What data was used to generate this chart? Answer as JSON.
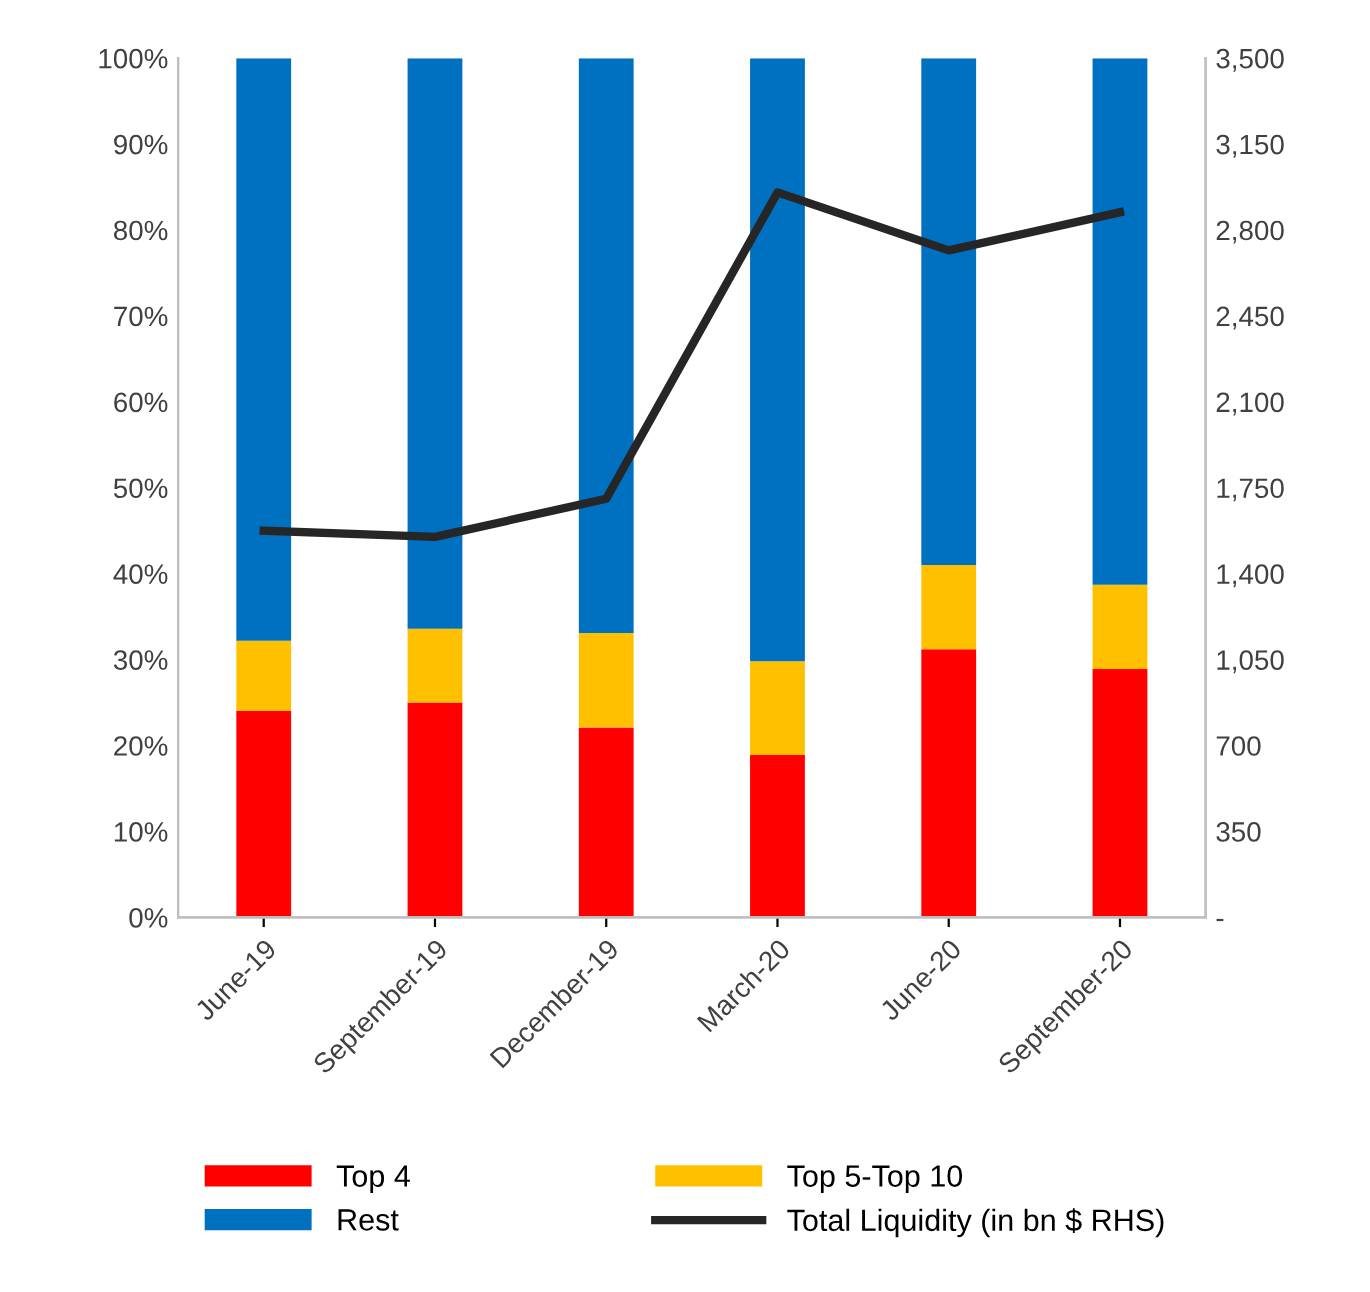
{
  "chart_data": {
    "type": "bar",
    "stacked": true,
    "categories": [
      "June-19",
      "September-19",
      "December-19",
      "March-20",
      "June-20",
      "September-20"
    ],
    "series": [
      {
        "name": "Top 4",
        "color": "#ff0000",
        "values": [
          24.0,
          25.0,
          22.1,
          18.9,
          31.2,
          28.9
        ]
      },
      {
        "name": "Top 5-Top 10",
        "color": "#ffc000",
        "values": [
          8.2,
          8.6,
          11.0,
          10.9,
          9.8,
          9.8
        ]
      },
      {
        "name": "Rest",
        "color": "#0070c0",
        "values": [
          67.8,
          66.4,
          66.9,
          70.2,
          59.0,
          61.3
        ]
      },
      {
        "name": "Total Liquidity (in bn $ RHS)",
        "type": "line",
        "axis": "y2",
        "color": "#262626",
        "values": [
          1575,
          1550,
          1705,
          2953,
          2717,
          2872
        ]
      }
    ],
    "ylim": [
      0,
      100
    ],
    "yticks": [
      {
        "value": 0,
        "label": "0%"
      },
      {
        "value": 10,
        "label": "10%"
      },
      {
        "value": 20,
        "label": "20%"
      },
      {
        "value": 30,
        "label": "30%"
      },
      {
        "value": 40,
        "label": "40%"
      },
      {
        "value": 50,
        "label": "50%"
      },
      {
        "value": 60,
        "label": "60%"
      },
      {
        "value": 70,
        "label": "70%"
      },
      {
        "value": 80,
        "label": "80%"
      },
      {
        "value": 90,
        "label": "90%"
      },
      {
        "value": 100,
        "label": "100%"
      }
    ],
    "y2lim": [
      0,
      3500
    ],
    "y2ticks": [
      {
        "value": 0,
        "label": "-"
      },
      {
        "value": 350,
        "label": "350"
      },
      {
        "value": 700,
        "label": "700"
      },
      {
        "value": 1050,
        "label": "1,050"
      },
      {
        "value": 1400,
        "label": "1,400"
      },
      {
        "value": 1750,
        "label": "1,750"
      },
      {
        "value": 2100,
        "label": "2,100"
      },
      {
        "value": 2450,
        "label": "2,450"
      },
      {
        "value": 2800,
        "label": "2,800"
      },
      {
        "value": 3150,
        "label": "3,150"
      },
      {
        "value": 3500,
        "label": "3,500"
      }
    ],
    "legend": "bottom",
    "grid": false
  }
}
